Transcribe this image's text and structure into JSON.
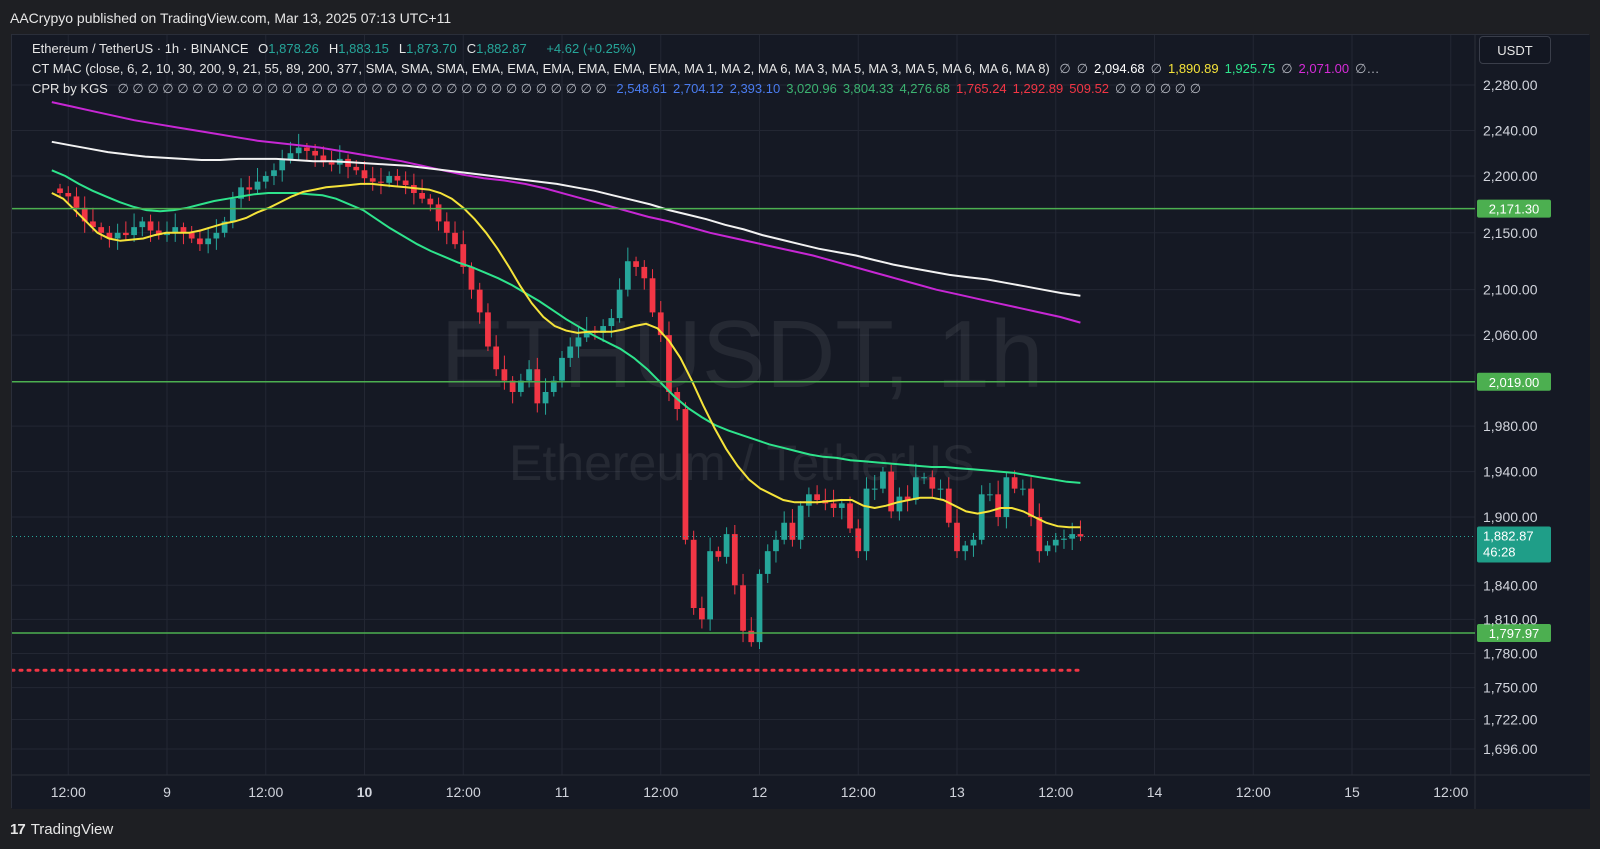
{
  "publisher_line": "AACrypyo published on TradingView.com, Mar 13, 2025 07:13 UTC+11",
  "footer": {
    "logo_mark": "17",
    "brand": "TradingView"
  },
  "currency": "USDT",
  "legend": {
    "symbol": "Ethereum / TetherUS · 1h · BINANCE",
    "ohlc": [
      {
        "k": "O",
        "v": "1,878.26"
      },
      {
        "k": "H",
        "v": "1,883.15"
      },
      {
        "k": "L",
        "v": "1,873.70"
      },
      {
        "k": "C",
        "v": "1,882.87"
      }
    ],
    "change": "+4.62 (+0.25%)",
    "mac_label": "CT MAC (close, 6, 2, 10, 30, 200, 9, 21, 55, 89, 200, 377, SMA, SMA, SMA, EMA, EMA, EMA, EMA, EMA, EMA, MA 1, MA 2, MA 6, MA 3, MA 5, MA 3, MA 5, MA 6, MA 6, MA 8)",
    "mac_values": [
      {
        "v": "∅",
        "c": "#b2b5be"
      },
      {
        "v": "∅",
        "c": "#b2b5be"
      },
      {
        "v": "2,094.68",
        "c": "#ffffff"
      },
      {
        "v": "∅",
        "c": "#b2b5be"
      },
      {
        "v": "1,890.89",
        "c": "#f5e33a"
      },
      {
        "v": "1,925.75",
        "c": "#2ee48c"
      },
      {
        "v": "∅",
        "c": "#b2b5be"
      },
      {
        "v": "2,071.00",
        "c": "#d62bd8"
      },
      {
        "v": "∅…",
        "c": "#b2b5be"
      }
    ],
    "cpr_label": "CPR by KGS",
    "cpr_nulls": "∅ ∅ ∅ ∅ ∅ ∅ ∅ ∅ ∅ ∅ ∅ ∅ ∅ ∅ ∅ ∅ ∅ ∅ ∅ ∅ ∅ ∅ ∅ ∅ ∅ ∅ ∅ ∅ ∅ ∅ ∅ ∅ ∅",
    "cpr_values": [
      {
        "v": "2,548.61",
        "c": "#4a7cf0"
      },
      {
        "v": "2,704.12",
        "c": "#4a7cf0"
      },
      {
        "v": "2,393.10",
        "c": "#4a7cf0"
      },
      {
        "v": "3,020.96",
        "c": "#3cb371"
      },
      {
        "v": "3,804.33",
        "c": "#3cb371"
      },
      {
        "v": "4,276.68",
        "c": "#3cb371"
      },
      {
        "v": "1,765.24",
        "c": "#f23645"
      },
      {
        "v": "1,292.89",
        "c": "#f23645"
      },
      {
        "v": "509.52",
        "c": "#f23645"
      },
      {
        "v": "∅ ∅ ∅ ∅ ∅ ∅",
        "c": "#b2b5be"
      }
    ]
  },
  "watermark": {
    "ticker": "ETHUSDT, 1h",
    "name": "Ethereum / TetherUS"
  },
  "colors": {
    "background": "#151924",
    "grid": "#232733",
    "up": "#26a69a",
    "down": "#f23645",
    "ema_fast": "#f5e33a",
    "ema_mid": "#2ee48c",
    "ema_slow_white": "#f2f2f2",
    "ema_slow_magenta": "#c727d4",
    "hline": "#4caf50",
    "pivot_dots": "#f23645"
  },
  "chart_data": {
    "type": "candlestick",
    "symbol": "ETHUSDT",
    "interval": "1h",
    "y_ticks": [
      "2,280.00",
      "2,240.00",
      "2,200.00",
      "2,150.00",
      "2,100.00",
      "2,060.00",
      "1,980.00",
      "1,940.00",
      "1,900.00",
      "1,840.00",
      "1,810.00",
      "1,780.00",
      "1,750.00",
      "1,722.00",
      "1,696.00"
    ],
    "x_ticks": [
      {
        "label": "12:00",
        "t": -12,
        "bold": false
      },
      {
        "label": "9",
        "t": 0,
        "bold": false
      },
      {
        "label": "12:00",
        "t": 12,
        "bold": false
      },
      {
        "label": "10",
        "t": 24,
        "bold": true
      },
      {
        "label": "12:00",
        "t": 36,
        "bold": false
      },
      {
        "label": "11",
        "t": 48,
        "bold": false
      },
      {
        "label": "12:00",
        "t": 60,
        "bold": false
      },
      {
        "label": "12",
        "t": 72,
        "bold": false
      },
      {
        "label": "12:00",
        "t": 84,
        "bold": false
      },
      {
        "label": "13",
        "t": 96,
        "bold": false
      },
      {
        "label": "12:00",
        "t": 108,
        "bold": false
      },
      {
        "label": "14",
        "t": 120,
        "bold": false
      },
      {
        "label": "12:00",
        "t": 132,
        "bold": false
      },
      {
        "label": "15",
        "t": 144,
        "bold": false
      },
      {
        "label": "12:00",
        "t": 156,
        "bold": false
      }
    ],
    "candles_close": [
      2185,
      2182,
      2172,
      2160,
      2155,
      2150,
      2145,
      2150,
      2148,
      2155,
      2160,
      2152,
      2148,
      2150,
      2155,
      2150,
      2145,
      2140,
      2145,
      2150,
      2160,
      2180,
      2190,
      2188,
      2195,
      2200,
      2205,
      2215,
      2220,
      2225,
      2222,
      2218,
      2212,
      2210,
      2215,
      2208,
      2205,
      2198,
      2195,
      2194,
      2200,
      2196,
      2192,
      2185,
      2180,
      2175,
      2160,
      2150,
      2140,
      2120,
      2100,
      2080,
      2050,
      2030,
      2020,
      2010,
      2020,
      2030,
      2000,
      2010,
      2020,
      2040,
      2050,
      2058,
      2064,
      2062,
      2068,
      2075,
      2100,
      2125,
      2120,
      2110,
      2080,
      2060,
      2010,
      1995,
      1880,
      1820,
      1810,
      1870,
      1865,
      1885,
      1840,
      1800,
      1790,
      1850,
      1870,
      1880,
      1895,
      1880,
      1910,
      1920,
      1915,
      1912,
      1908,
      1912,
      1890,
      1870,
      1925,
      1925,
      1940,
      1905,
      1918,
      1915,
      1935,
      1935,
      1925,
      1925,
      1895,
      1870,
      1875,
      1880,
      1920,
      1920,
      1900,
      1935,
      1925,
      1925,
      1900,
      1870,
      1875,
      1880,
      1881,
      1885,
      1882.87
    ],
    "ema_fast": [
      2185,
      2180,
      2170,
      2160,
      2150,
      2145,
      2143,
      2144,
      2145,
      2148,
      2150,
      2150,
      2150,
      2152,
      2155,
      2158,
      2160,
      2163,
      2168,
      2172,
      2177,
      2182,
      2186,
      2188,
      2190,
      2191,
      2192,
      2193,
      2193,
      2192,
      2191,
      2190,
      2189,
      2188,
      2185,
      2180,
      2172,
      2162,
      2150,
      2136,
      2120,
      2103,
      2088,
      2076,
      2068,
      2064,
      2062,
      2063,
      2063,
      2063,
      2065,
      2068,
      2070,
      2066,
      2055,
      2040,
      2020,
      1998,
      1978,
      1960,
      1945,
      1933,
      1925,
      1920,
      1915,
      1913,
      1913,
      1913,
      1914,
      1915,
      1915,
      1910,
      1908,
      1910,
      1913,
      1915,
      1917,
      1917,
      1915,
      1910,
      1905,
      1903,
      1905,
      1908,
      1908,
      1905,
      1900,
      1895,
      1892,
      1891,
      1891
    ],
    "ema_mid": [
      2205,
      2200,
      2193,
      2187,
      2182,
      2177,
      2173,
      2170,
      2169,
      2170,
      2172,
      2175,
      2178,
      2180,
      2182,
      2184,
      2185,
      2185,
      2185,
      2184,
      2183,
      2180,
      2175,
      2170,
      2162,
      2154,
      2147,
      2140,
      2134,
      2129,
      2124,
      2120,
      2115,
      2110,
      2104,
      2097,
      2090,
      2082,
      2074,
      2067,
      2060,
      2054,
      2048,
      2040,
      2030,
      2018,
      2006,
      1996,
      1988,
      1981,
      1976,
      1972,
      1968,
      1964,
      1961,
      1958,
      1955,
      1953,
      1952,
      1950,
      1949,
      1948,
      1947,
      1946,
      1945,
      1944,
      1944,
      1943,
      1942,
      1941,
      1940,
      1939,
      1937,
      1935,
      1933,
      1931,
      1930
    ],
    "ema_slow_white": [
      2230,
      2227,
      2224,
      2221,
      2219,
      2217,
      2216,
      2215,
      2214,
      2214,
      2215,
      2215,
      2215,
      2214,
      2213,
      2213,
      2212,
      2211,
      2210,
      2209,
      2207,
      2205,
      2203,
      2201,
      2199,
      2197,
      2195,
      2193,
      2190,
      2187,
      2183,
      2179,
      2175,
      2170,
      2166,
      2162,
      2157,
      2153,
      2148,
      2144,
      2140,
      2136,
      2133,
      2130,
      2126,
      2122,
      2119,
      2116,
      2113,
      2111,
      2109,
      2106,
      2103,
      2100,
      2097,
      2094.68
    ],
    "ema_slow_magenta": [
      2265,
      2261,
      2257,
      2253,
      2249,
      2246,
      2243,
      2240,
      2237,
      2234,
      2231,
      2229,
      2227,
      2225,
      2222,
      2219,
      2216,
      2213,
      2209,
      2205,
      2201,
      2198,
      2196,
      2193,
      2189,
      2184,
      2179,
      2174,
      2169,
      2164,
      2160,
      2155,
      2150,
      2146,
      2142,
      2138,
      2134,
      2130,
      2125,
      2120,
      2115,
      2110,
      2105,
      2100,
      2096,
      2092,
      2088,
      2084,
      2080,
      2076,
      2071
    ],
    "support_resistance": [
      2171.3,
      2019.0,
      1797.97
    ],
    "pivot_level": 1765.24,
    "last_price": "1,882.87",
    "countdown": "46:28",
    "labels": [
      "2,171.30",
      "2,019.00",
      "1,797.97"
    ]
  }
}
